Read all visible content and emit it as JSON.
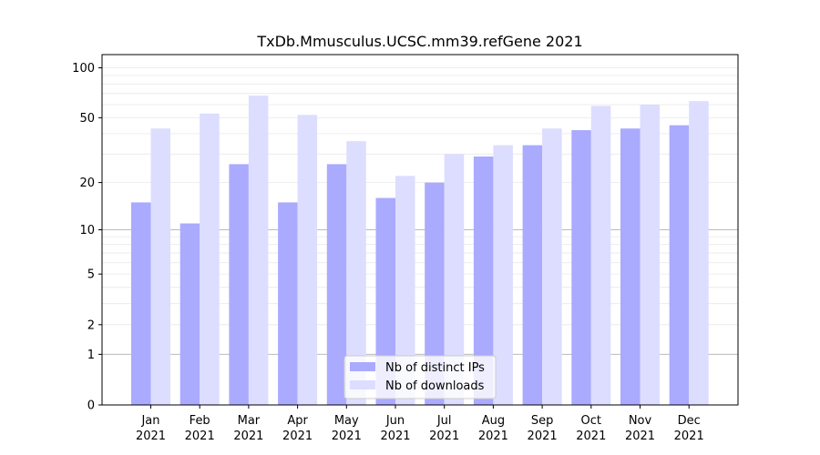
{
  "chart_data": {
    "type": "bar",
    "title": "TxDb.Mmusculus.UCSC.mm39.refGene 2021",
    "xlabel": "",
    "ylabel": "",
    "yscale": "log(1+y)",
    "ylim": [
      0,
      120
    ],
    "categories": [
      {
        "month": "Jan",
        "year": "2021"
      },
      {
        "month": "Feb",
        "year": "2021"
      },
      {
        "month": "Mar",
        "year": "2021"
      },
      {
        "month": "Apr",
        "year": "2021"
      },
      {
        "month": "May",
        "year": "2021"
      },
      {
        "month": "Jun",
        "year": "2021"
      },
      {
        "month": "Jul",
        "year": "2021"
      },
      {
        "month": "Aug",
        "year": "2021"
      },
      {
        "month": "Sep",
        "year": "2021"
      },
      {
        "month": "Oct",
        "year": "2021"
      },
      {
        "month": "Nov",
        "year": "2021"
      },
      {
        "month": "Dec",
        "year": "2021"
      }
    ],
    "y_ticks": [
      0,
      1,
      2,
      5,
      10,
      20,
      50,
      100
    ],
    "grid": "horizontal",
    "legend_position": "bottom-center",
    "series": [
      {
        "name": "Nb of distinct IPs",
        "color": "#aaaaff",
        "values": [
          15,
          11,
          26,
          15,
          26,
          16,
          20,
          29,
          34,
          42,
          43,
          45
        ]
      },
      {
        "name": "Nb of downloads",
        "color": "#ddddff",
        "values": [
          43,
          53,
          68,
          52,
          36,
          22,
          30,
          34,
          43,
          59,
          60,
          63
        ]
      }
    ]
  }
}
